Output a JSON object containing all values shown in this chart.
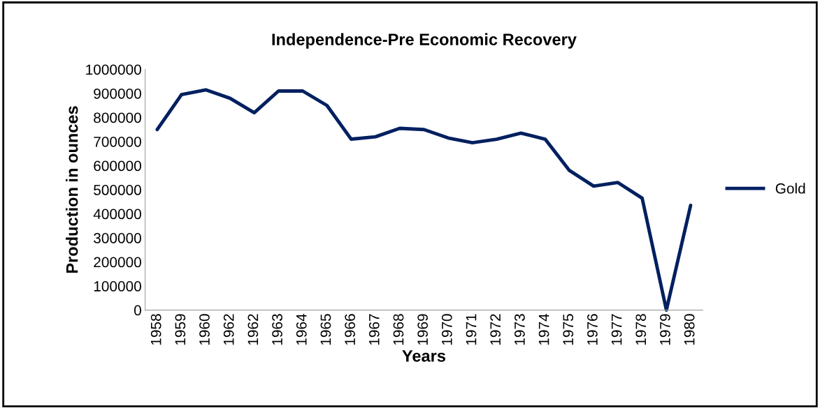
{
  "chart_data": {
    "type": "line",
    "title": "Independence-Pre Economic Recovery",
    "xlabel": "Years",
    "ylabel": "Production in ounces",
    "categories": [
      "1958",
      "1959",
      "1960",
      "1962",
      "1962",
      "1963",
      "1964",
      "1965",
      "1966",
      "1967",
      "1968",
      "1969",
      "1970",
      "1971",
      "1972",
      "1973",
      "1974",
      "1975",
      "1976",
      "1977",
      "1978",
      "1979",
      "1980"
    ],
    "series": [
      {
        "name": "Gold",
        "color": "#002060",
        "values": [
          750000,
          895000,
          915000,
          880000,
          820000,
          910000,
          910000,
          850000,
          710000,
          720000,
          755000,
          750000,
          715000,
          695000,
          710000,
          735000,
          710000,
          580000,
          515000,
          530000,
          465000,
          0,
          435000
        ]
      }
    ],
    "ylim": [
      0,
      1000000
    ],
    "yticks": [
      0,
      100000,
      200000,
      300000,
      400000,
      500000,
      600000,
      700000,
      800000,
      900000,
      1000000
    ],
    "grid": false,
    "legend": "right",
    "marker": "none",
    "line_style": "solid"
  }
}
